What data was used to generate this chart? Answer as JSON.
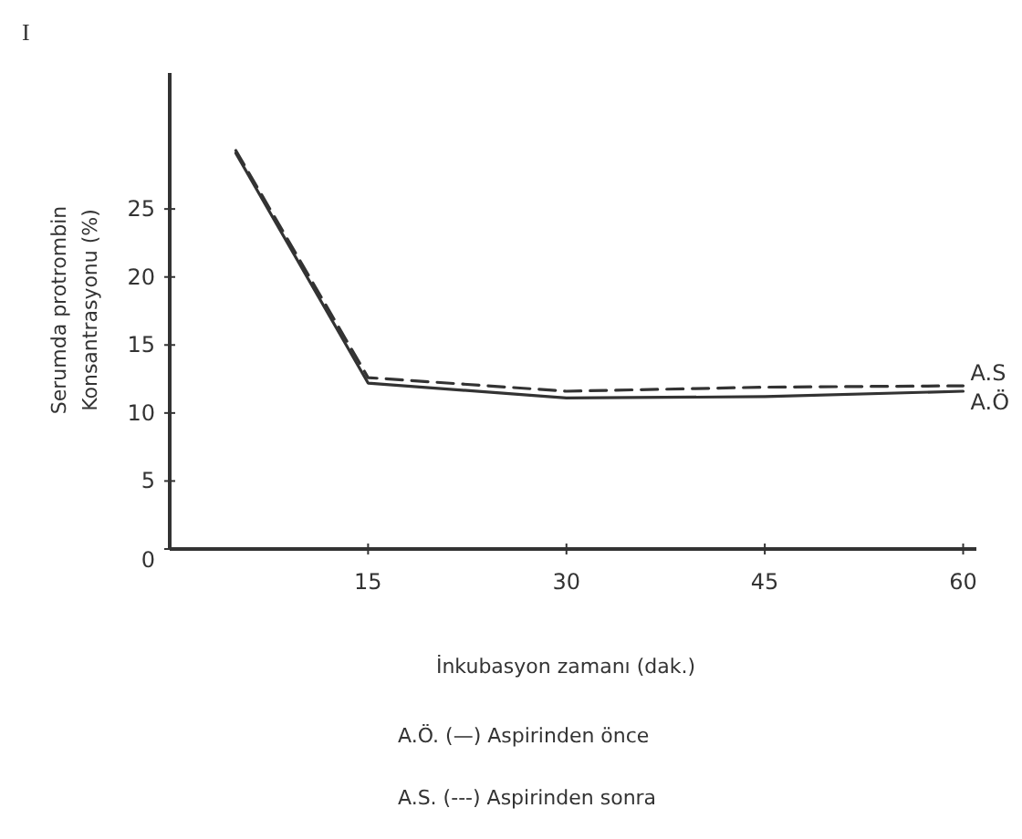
{
  "chart_data": {
    "type": "line",
    "title": "I",
    "xlabel": "İnkubasyon zamanı (dak.)",
    "ylabel": "Serumda protrombin\nKonsantrasyonu (%)",
    "x": [
      5,
      15,
      30,
      45,
      60
    ],
    "series": [
      {
        "name": "A.S",
        "color": "#333333",
        "line_style": "dashed",
        "values": [
          29.3,
          12.6,
          11.6,
          11.9,
          12.0
        ]
      },
      {
        "name": "A.Ö",
        "color": "#333333",
        "line_style": "solid",
        "values": [
          29.1,
          12.2,
          11.1,
          11.2,
          11.6
        ]
      }
    ],
    "xlim": [
      0,
      61
    ],
    "xticks": [
      15,
      30,
      45,
      60
    ],
    "ylim": [
      0,
      35
    ],
    "yticks": [
      0,
      5,
      10,
      15,
      20,
      25
    ],
    "marker": "none",
    "annotations": [
      "A.Ö. (—) Aspirinden önce",
      "A.S. (---) Aspirinden sonra"
    ]
  }
}
